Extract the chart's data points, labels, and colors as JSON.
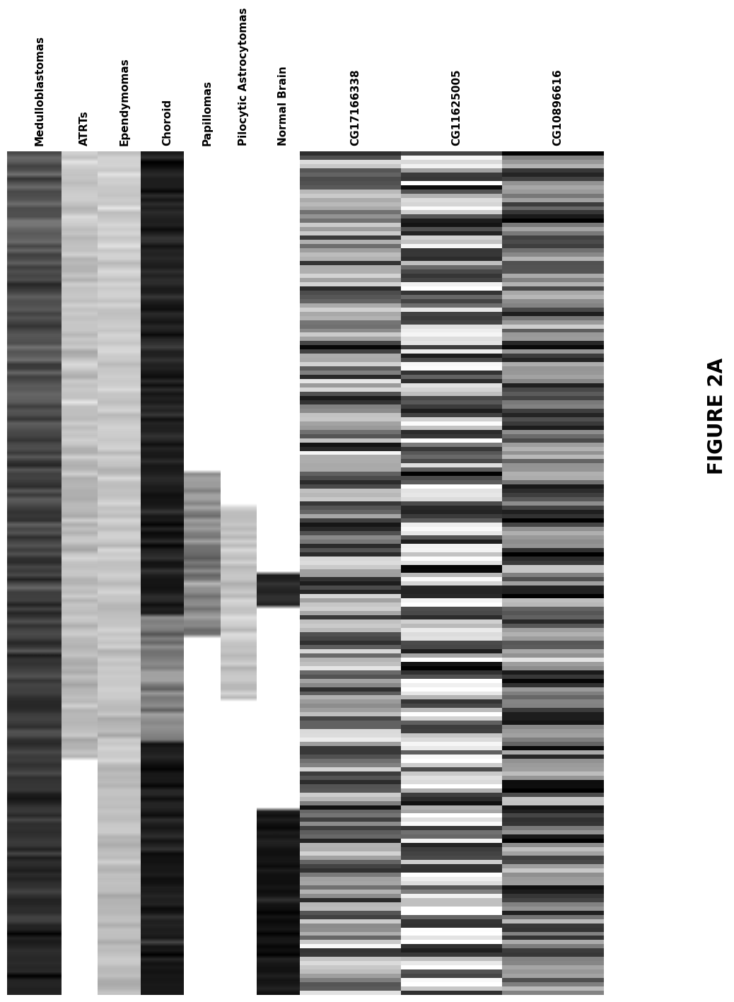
{
  "figure_label": "FIGURE 2A",
  "column_labels": [
    "Medulloblastomas",
    "ATRTs",
    "Ependymomas",
    "Choroid",
    "Papillomas",
    "Pilocytic Astrocytomas",
    "Normal Brain",
    "CG17166338",
    "CG11625005",
    "CG10896616"
  ],
  "n_rows": 200,
  "background_color": "#ffffff",
  "figure_label_fontsize": 20,
  "label_fontsize": 11
}
